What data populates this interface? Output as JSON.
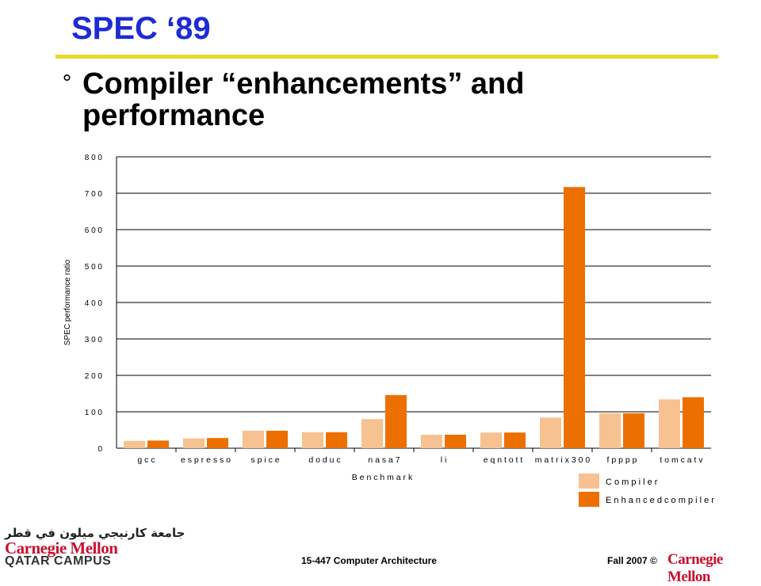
{
  "slide": {
    "title": "SPEC ‘89",
    "bullet_marker": "°",
    "bullet_text": "Compiler “enhancements” and performance"
  },
  "footer": {
    "arabic_logo": "جامعة كارنيجي ميلون في قطر",
    "logo_name": "Carnegie Mellon",
    "logo_campus": "QATAR CAMPUS",
    "course": "15-447 Computer Architecture",
    "term": "Fall 2007 ©",
    "cmu_right": "Carnegie Mellon"
  },
  "chart_data": {
    "type": "bar",
    "xlabel": "B e n c h m a r k",
    "ylabel": "SPEC performance ratio",
    "ylim": [
      0,
      800
    ],
    "yticks": [
      0,
      100,
      200,
      300,
      400,
      500,
      600,
      700,
      800
    ],
    "ytick_labels": [
      "0",
      "1 0 0",
      "2 0 0",
      "3 0 0",
      "4 0 0",
      "5 0 0",
      "6 0 0",
      "7 0 0",
      "8 0 0"
    ],
    "grid": true,
    "legend_position": "bottom-right",
    "categories": [
      "g c c",
      "e s p r e s s o",
      "s p i c e",
      "d o d u c",
      "n a s a 7",
      "l i",
      "e q n t o t t",
      "m a t r i x 3 0 0",
      "f p p p p",
      "t o m c a t v"
    ],
    "series": [
      {
        "name": "C o m p i l e r",
        "color": "#f6c291",
        "values": [
          20,
          27,
          48,
          44,
          80,
          37,
          43,
          84,
          96,
          134
        ]
      },
      {
        "name": "E n h a n c e d   c o m p i l e r",
        "color": "#ec7000",
        "values": [
          21,
          28,
          48,
          44,
          146,
          37,
          43,
          717,
          96,
          140
        ]
      }
    ]
  }
}
